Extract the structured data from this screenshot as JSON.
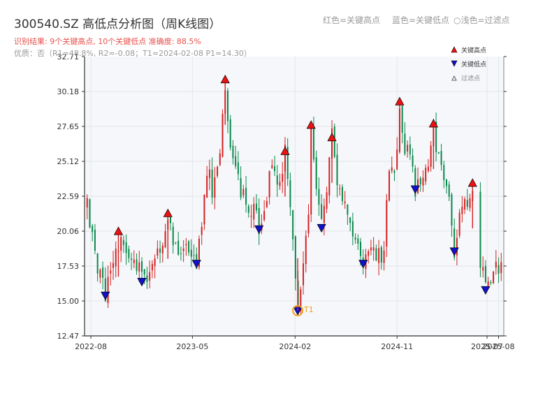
{
  "header": {
    "title": "300540.SZ 高低点分析图（周K线图）",
    "result_line": "识别结果: 9个关键高点, 10个关键低点  准确度: 88.5%",
    "quality_line": "优质：否（R1=48.8%, R2=-0.08；T1=2024-02-08 P1=14.30）",
    "legend_high": "红色=关键高点",
    "legend_low": "蓝色=关键低点",
    "legend_filtered": "○浅色=过滤点"
  },
  "colors": {
    "up": "#d42020",
    "down": "#08884a",
    "high_marker": "#ee1111",
    "low_marker": "#1111cc",
    "t1_marker": "#f0a020",
    "plot_bg": "#f5f7fa",
    "grid": "#e3e6ea"
  },
  "chart_data": {
    "type": "candlestick",
    "title": "300540.SZ 高低点分析图（周K线图）",
    "xlabel": "",
    "ylabel": "",
    "xlim": [
      "2022-07-15",
      "2025-08-15"
    ],
    "ylim": [
      12.47,
      32.71
    ],
    "grid": true,
    "legend_position": "top-right",
    "y_ticks": [
      12.47,
      15.0,
      17.53,
      20.06,
      22.59,
      25.12,
      27.65,
      30.18,
      32.71
    ],
    "x_ticks": [
      "2022-08",
      "2023-05",
      "2024-02",
      "2024-11",
      "2025-07",
      "2025-08"
    ],
    "price_path": [
      [
        "2022-07-22",
        21.8
      ],
      [
        "2022-08-05",
        19.2
      ],
      [
        "2022-08-19",
        17.0
      ],
      [
        "2022-09-02",
        16.2
      ],
      [
        "2022-09-09",
        15.7
      ],
      [
        "2022-09-23",
        17.7
      ],
      [
        "2022-10-14",
        18.6
      ],
      [
        "2022-10-28",
        19.8
      ],
      [
        "2022-11-11",
        18.5
      ],
      [
        "2022-12-02",
        17.7
      ],
      [
        "2022-12-16",
        17.0
      ],
      [
        "2022-12-30",
        16.5
      ],
      [
        "2023-01-13",
        17.5
      ],
      [
        "2023-02-03",
        18.5
      ],
      [
        "2023-02-24",
        21.1
      ],
      [
        "2023-03-10",
        19.8
      ],
      [
        "2023-03-24",
        19.0
      ],
      [
        "2023-04-14",
        19.7
      ],
      [
        "2023-04-28",
        18.7
      ],
      [
        "2023-05-12",
        17.7
      ],
      [
        "2023-05-26",
        19.8
      ],
      [
        "2023-06-09",
        24.5
      ],
      [
        "2023-06-23",
        23.0
      ],
      [
        "2023-07-14",
        26.0
      ],
      [
        "2023-07-28",
        30.8
      ],
      [
        "2023-08-11",
        26.5
      ],
      [
        "2023-08-25",
        24.5
      ],
      [
        "2023-09-15",
        22.5
      ],
      [
        "2023-09-29",
        21.0
      ],
      [
        "2023-10-13",
        21.8
      ],
      [
        "2023-10-27",
        20.3
      ],
      [
        "2023-11-10",
        22.0
      ],
      [
        "2023-11-24",
        23.8
      ],
      [
        "2023-12-08",
        24.3
      ],
      [
        "2023-12-22",
        23.5
      ],
      [
        "2024-01-05",
        25.8
      ],
      [
        "2024-01-19",
        21.5
      ],
      [
        "2024-02-08",
        14.3
      ],
      [
        "2024-02-23",
        18.5
      ],
      [
        "2024-03-08",
        21.8
      ],
      [
        "2024-03-15",
        27.5
      ],
      [
        "2024-03-29",
        23.0
      ],
      [
        "2024-04-12",
        20.3
      ],
      [
        "2024-04-26",
        23.5
      ],
      [
        "2024-05-10",
        26.8
      ],
      [
        "2024-05-24",
        23.2
      ],
      [
        "2024-06-14",
        21.5
      ],
      [
        "2024-06-28",
        20.6
      ],
      [
        "2024-07-12",
        19.8
      ],
      [
        "2024-08-02",
        17.8
      ],
      [
        "2024-08-16",
        18.6
      ],
      [
        "2024-09-06",
        18.5
      ],
      [
        "2024-09-27",
        18.1
      ],
      [
        "2024-10-11",
        25.0
      ],
      [
        "2024-10-25",
        23.5
      ],
      [
        "2024-11-08",
        29.2
      ],
      [
        "2024-11-22",
        26.0
      ],
      [
        "2024-12-06",
        25.5
      ],
      [
        "2024-12-20",
        23.2
      ],
      [
        "2025-01-10",
        24.5
      ],
      [
        "2025-01-24",
        25.5
      ],
      [
        "2025-02-07",
        27.6
      ],
      [
        "2025-02-21",
        25.0
      ],
      [
        "2025-03-07",
        24.0
      ],
      [
        "2025-03-21",
        23.2
      ],
      [
        "2025-04-04",
        18.6
      ],
      [
        "2025-04-18",
        21.0
      ],
      [
        "2025-05-09",
        22.0
      ],
      [
        "2025-05-23",
        23.4
      ],
      [
        "2025-06-06",
        22.3
      ],
      [
        "2025-06-13",
        17.5
      ],
      [
        "2025-06-27",
        16.5
      ],
      [
        "2025-07-11",
        17.0
      ],
      [
        "2025-07-25",
        17.3
      ],
      [
        "2025-08-08",
        17.2
      ]
    ],
    "gaps": [
      [
        "2025-05-23",
        "2025-06-13"
      ]
    ],
    "key_highs": [
      {
        "date": "2022-10-14",
        "value": 19.8
      },
      {
        "date": "2023-02-24",
        "value": 21.1
      },
      {
        "date": "2023-07-28",
        "value": 30.8
      },
      {
        "date": "2024-01-05",
        "value": 25.6
      },
      {
        "date": "2024-03-15",
        "value": 27.5
      },
      {
        "date": "2024-05-10",
        "value": 26.6
      },
      {
        "date": "2024-11-08",
        "value": 29.2
      },
      {
        "date": "2025-02-07",
        "value": 27.6
      },
      {
        "date": "2025-05-23",
        "value": 23.3
      }
    ],
    "key_lows": [
      {
        "date": "2022-09-09",
        "value": 15.4
      },
      {
        "date": "2022-12-16",
        "value": 16.4
      },
      {
        "date": "2023-05-12",
        "value": 17.7
      },
      {
        "date": "2023-10-27",
        "value": 20.2
      },
      {
        "date": "2024-02-08",
        "value": 14.3
      },
      {
        "date": "2024-04-12",
        "value": 20.3
      },
      {
        "date": "2024-08-02",
        "value": 17.7
      },
      {
        "date": "2024-12-20",
        "value": 23.1
      },
      {
        "date": "2025-04-04",
        "value": 18.6
      },
      {
        "date": "2025-06-27",
        "value": 15.8
      }
    ],
    "t1": {
      "label": "T1",
      "date": "2024-02-08",
      "value": 14.3
    },
    "legend": [
      {
        "label": "关键高点",
        "marker": "up-triangle",
        "color": "#ee1111"
      },
      {
        "label": "关键低点",
        "marker": "down-triangle",
        "color": "#1111cc"
      },
      {
        "label": "过滤点",
        "marker": "up-triangle-hollow",
        "color": "#888888"
      }
    ]
  }
}
